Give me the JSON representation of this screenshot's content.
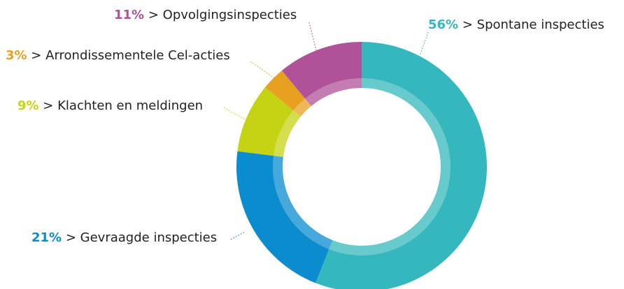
{
  "chart_data": {
    "type": "donut",
    "separator": ">",
    "categories": [
      "Spontane inspecties",
      "Gevraagde inspecties",
      "Klachten en meldingen",
      "Arrondissementele Cel-acties",
      "Opvolgingsinspecties"
    ],
    "values": [
      56,
      21,
      9,
      3,
      11
    ],
    "value_labels": [
      "56%",
      "21%",
      "9%",
      "3%",
      "11%"
    ],
    "colors": [
      "#35b8bd",
      "#0a8ccf",
      "#c6d315",
      "#e8a020",
      "#b0529a"
    ]
  }
}
